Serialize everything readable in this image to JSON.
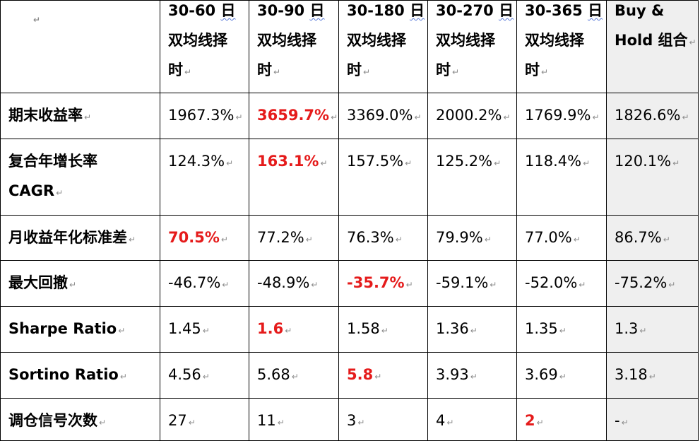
{
  "table": {
    "corner_mark": "↵",
    "headers": [
      {
        "line1_a": "30-60 ",
        "line1_b": "日",
        "line2": "双均线择",
        "line3": "时"
      },
      {
        "line1_a": "30-90 ",
        "line1_b": "日",
        "line2": "双均线择",
        "line3": "时"
      },
      {
        "line1_a": "30-180 ",
        "line1_b": "日",
        "line2": "双均线择",
        "line3": "时"
      },
      {
        "line1_a": "30-270 ",
        "line1_b": "日",
        "line2": "双均线择",
        "line3": "时"
      },
      {
        "line1_a": "30-365 ",
        "line1_b": "日",
        "line2": "双均线择",
        "line3": "时"
      },
      {
        "line1_a": "Buy &",
        "line1_b": "",
        "line2": "Hold 组合",
        "line3": ""
      }
    ],
    "rows": [
      {
        "label": "期末收益率",
        "label2": "",
        "values": [
          "1967.3%",
          "3659.7%",
          "3369.0%",
          "2000.2%",
          "1769.9%",
          "1826.6%"
        ],
        "best": 1
      },
      {
        "label": "复合年增长率",
        "label2": "CAGR",
        "values": [
          "124.3%",
          "163.1%",
          "157.5%",
          "125.2%",
          "118.4%",
          "120.1%"
        ],
        "best": 1
      },
      {
        "label": "月收益年化标准差",
        "label2": "",
        "values": [
          "70.5%",
          "77.2%",
          "76.3%",
          "79.9%",
          "77.0%",
          "86.7%"
        ],
        "best": 0
      },
      {
        "label": "最大回撤",
        "label2": "",
        "values": [
          "-46.7%",
          "-48.9%",
          "-35.7%",
          "-59.1%",
          "-52.0%",
          "-75.2%"
        ],
        "best": 2
      },
      {
        "label": "Sharpe Ratio",
        "label2": "",
        "values": [
          "1.45",
          "1.6",
          "1.58",
          "1.36",
          "1.35",
          "1.3"
        ],
        "best": 1
      },
      {
        "label": "Sortino Ratio",
        "label2": "",
        "values": [
          "4.56",
          "5.68",
          "5.8",
          "3.93",
          "3.69",
          "3.18"
        ],
        "best": 2
      },
      {
        "label": "调仓信号次数",
        "label2": "",
        "values": [
          "27",
          "11",
          "3",
          "4",
          "2",
          "-"
        ],
        "best": 4
      }
    ],
    "para_mark": "↵"
  }
}
